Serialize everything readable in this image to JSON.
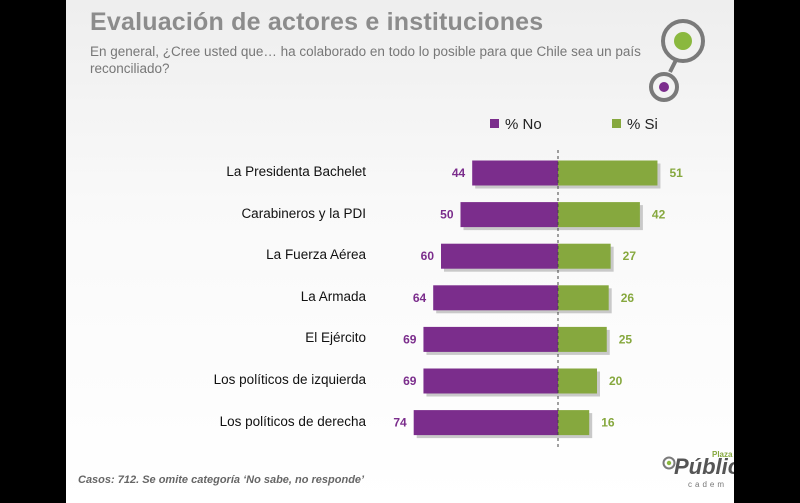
{
  "slide": {
    "title": "Evaluación de actores e instituciones",
    "subtitle": "En general, ¿Cree usted que… ha colaborado en todo lo posible para que Chile sea un país reconciliado?",
    "footnote": "Casos: 712. Se omite categoría ‘No sabe, no responde’",
    "brand": {
      "name": "Pública",
      "top": "Plaza",
      "sub": "cadem"
    }
  },
  "colors": {
    "no": "#7b2d8c",
    "si": "#86a83e",
    "ring_gray": "#7a7a7a",
    "dot_purple": "#7b2d8c",
    "dot_green": "#8ab83f"
  },
  "chart_data": {
    "type": "bar",
    "orientation": "horizontal-diverging",
    "categories": [
      "La Presidenta Bachelet",
      "Carabineros y la PDI",
      "La Fuerza Aérea",
      "La Armada",
      "El Ejército",
      "Los políticos de izquierda",
      "Los políticos de derecha"
    ],
    "series": [
      {
        "name": "% No",
        "color": "#7b2d8c",
        "values": [
          44,
          50,
          60,
          64,
          69,
          69,
          74
        ]
      },
      {
        "name": "% Si",
        "color": "#86a83e",
        "values": [
          51,
          42,
          27,
          26,
          25,
          20,
          16
        ]
      }
    ],
    "legend": "top",
    "grid": false
  }
}
